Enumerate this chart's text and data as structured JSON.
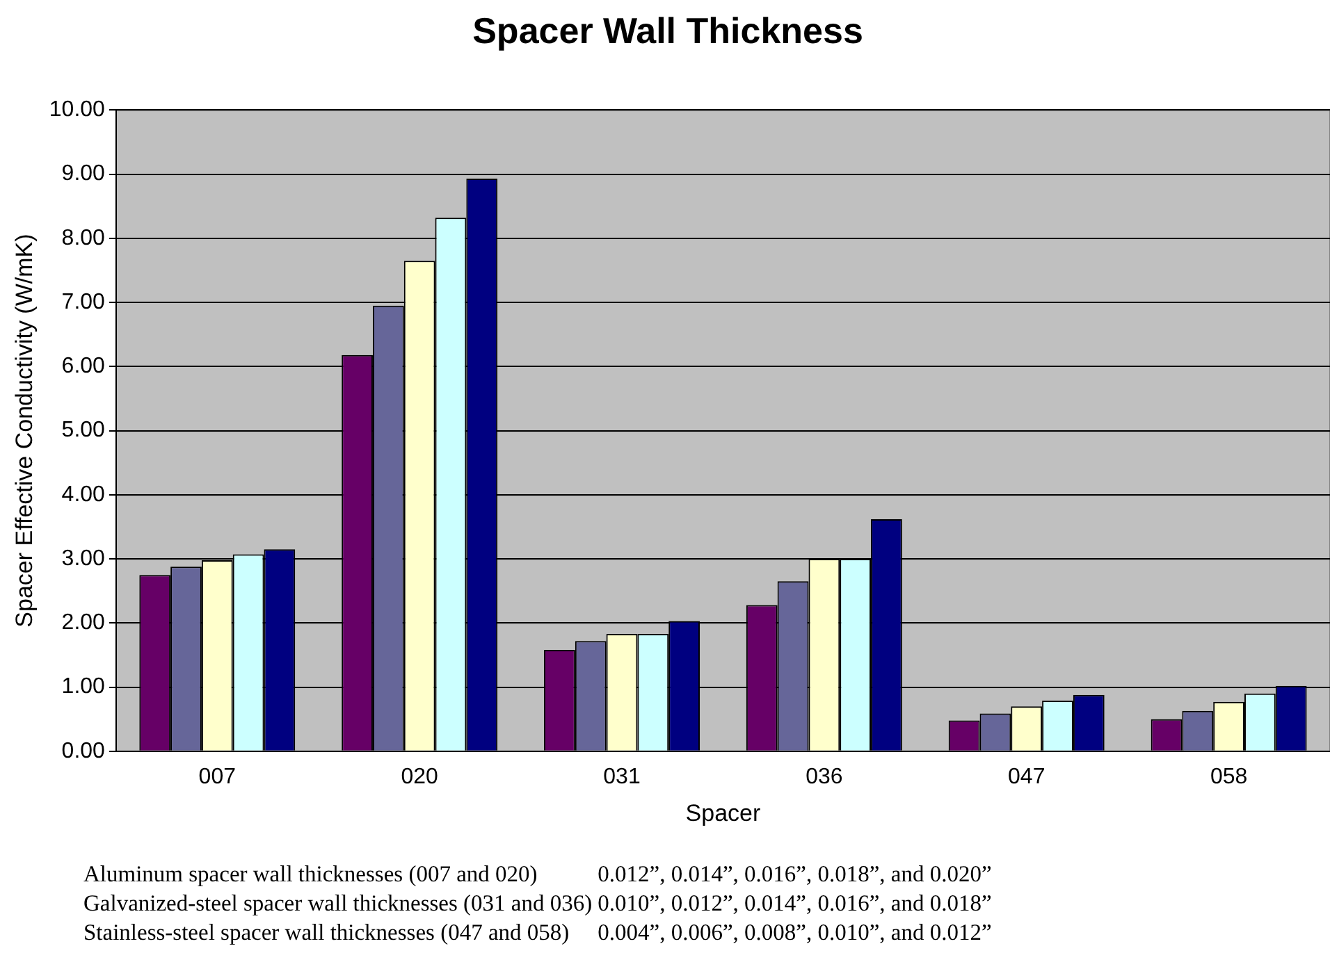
{
  "chart_data": {
    "type": "bar",
    "title": "Spacer Wall Thickness",
    "xlabel": "Spacer",
    "ylabel": "Spacer Effective Conductivity (W/mK)",
    "categories": [
      "007",
      "020",
      "031",
      "036",
      "047",
      "058"
    ],
    "series": [
      {
        "color": "#660066",
        "values": [
          2.75,
          6.18,
          1.58,
          2.28,
          0.48,
          0.5
        ]
      },
      {
        "color": "#666699",
        "values": [
          2.88,
          6.95,
          1.72,
          2.65,
          0.59,
          0.63
        ]
      },
      {
        "color": "#ffffcc",
        "values": [
          2.98,
          7.65,
          1.83,
          3.0,
          0.7,
          0.77
        ]
      },
      {
        "color": "#ccffff",
        "values": [
          3.07,
          8.32,
          1.83,
          3.0,
          0.79,
          0.9
        ]
      },
      {
        "color": "#000080",
        "values": [
          3.15,
          8.93,
          2.03,
          3.62,
          0.88,
          1.02
        ]
      }
    ],
    "ylim": [
      0,
      10
    ],
    "yticks": [
      {
        "value": 0,
        "label": "0.00"
      },
      {
        "value": 1,
        "label": "1.00"
      },
      {
        "value": 2,
        "label": "2.00"
      },
      {
        "value": 3,
        "label": "3.00"
      },
      {
        "value": 4,
        "label": "4.00"
      },
      {
        "value": 5,
        "label": "5.00"
      },
      {
        "value": 6,
        "label": "6.00"
      },
      {
        "value": 7,
        "label": "7.00"
      },
      {
        "value": 8,
        "label": "8.00"
      },
      {
        "value": 9,
        "label": "9.00"
      },
      {
        "value": 10,
        "label": "10.00"
      }
    ],
    "grid": "y",
    "legend": false,
    "annotations": [
      "Aluminum spacer wall thicknesses (007 and 020)",
      "0.012”, 0.014”, 0.016”, 0.018”, and 0.020”",
      "Galvanized-steel spacer wall thicknesses (031 and 036)",
      "0.010”, 0.012”, 0.014”, 0.016”, and 0.018”",
      "Stainless-steel spacer wall thicknesses (047 and 058)",
      "0.004”, 0.006”, 0.008”, 0.010”, and 0.012”"
    ]
  }
}
